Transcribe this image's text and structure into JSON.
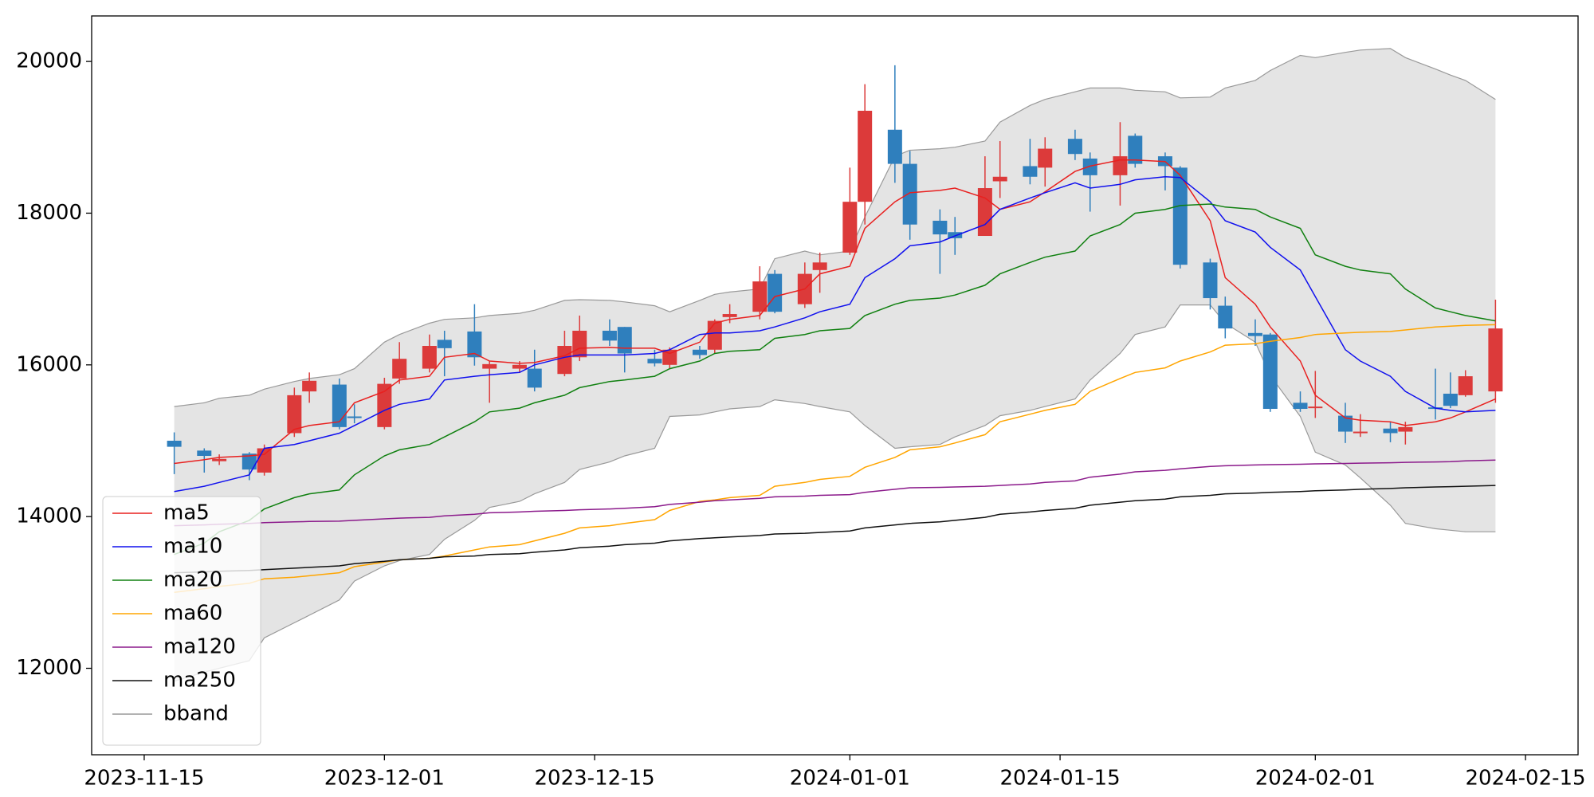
{
  "chart_data": {
    "type": "candlestick",
    "x": [
      "2023-11-17",
      "2023-11-19",
      "2023-11-20",
      "2023-11-22",
      "2023-11-23",
      "2023-11-25",
      "2023-11-26",
      "2023-11-28",
      "2023-11-29",
      "2023-12-01",
      "2023-12-02",
      "2023-12-04",
      "2023-12-05",
      "2023-12-07",
      "2023-12-08",
      "2023-12-10",
      "2023-12-11",
      "2023-12-13",
      "2023-12-14",
      "2023-12-16",
      "2023-12-17",
      "2023-12-19",
      "2023-12-20",
      "2023-12-22",
      "2023-12-23",
      "2023-12-24",
      "2023-12-26",
      "2023-12-27",
      "2023-12-29",
      "2023-12-30",
      "2024-01-01",
      "2024-01-02",
      "2024-01-04",
      "2024-01-05",
      "2024-01-07",
      "2024-01-08",
      "2024-01-10",
      "2024-01-11",
      "2024-01-13",
      "2024-01-14",
      "2024-01-16",
      "2024-01-17",
      "2024-01-19",
      "2024-01-20",
      "2024-01-22",
      "2024-01-23",
      "2024-01-25",
      "2024-01-26",
      "2024-01-28",
      "2024-01-29",
      "2024-01-31",
      "2024-02-01",
      "2024-02-03",
      "2024-02-04",
      "2024-02-06",
      "2024-02-07",
      "2024-02-09",
      "2024-02-10",
      "2024-02-11",
      "2024-02-13"
    ],
    "open": [
      15000,
      14870,
      14730,
      14830,
      14580,
      15100,
      15650,
      15740,
      15320,
      15180,
      15820,
      15950,
      16330,
      16440,
      15950,
      15950,
      15950,
      15880,
      16100,
      16450,
      16500,
      16080,
      16000,
      16200,
      16200,
      16630,
      16700,
      17200,
      16800,
      17250,
      17480,
      18150,
      19100,
      18650,
      17900,
      17750,
      17700,
      18420,
      18620,
      18600,
      18980,
      18720,
      18500,
      19020,
      18750,
      18600,
      17350,
      16780,
      16420,
      16400,
      15500,
      15430,
      15330,
      15110,
      15160,
      15120,
      15440,
      15620,
      15600,
      15650
    ],
    "high": [
      15110,
      14900,
      14820,
      14850,
      14950,
      15700,
      15900,
      15820,
      15480,
      15830,
      16300,
      16400,
      16450,
      16800,
      16050,
      16050,
      16200,
      16450,
      16650,
      16600,
      16500,
      16200,
      16230,
      16250,
      16600,
      16800,
      17300,
      17250,
      17350,
      17480,
      18600,
      19700,
      19950,
      18820,
      18050,
      17950,
      18750,
      18950,
      18980,
      19000,
      19100,
      18800,
      19200,
      19050,
      18800,
      18620,
      17400,
      16900,
      16600,
      16420,
      15650,
      15920,
      15500,
      15350,
      15250,
      15250,
      15950,
      15900,
      15930,
      16860
    ],
    "low": [
      14560,
      14580,
      14680,
      14480,
      14540,
      15050,
      15500,
      15150,
      15230,
      15150,
      15750,
      15900,
      15850,
      15990,
      15500,
      15900,
      15650,
      15850,
      16050,
      16250,
      15900,
      15980,
      15950,
      16080,
      16150,
      16550,
      16600,
      16680,
      16750,
      16950,
      17450,
      17850,
      18400,
      17650,
      17200,
      17450,
      17700,
      18200,
      18380,
      18350,
      18700,
      18020,
      18100,
      18600,
      18300,
      17270,
      16730,
      16350,
      16250,
      15380,
      15380,
      15300,
      14970,
      15050,
      14980,
      14950,
      15280,
      15430,
      15580,
      15500
    ],
    "close": [
      14920,
      14800,
      14760,
      14620,
      14900,
      15600,
      15790,
      15180,
      15300,
      15750,
      16080,
      16250,
      16220,
      16100,
      16010,
      16000,
      15700,
      16250,
      16450,
      16320,
      16150,
      16020,
      16200,
      16130,
      16580,
      16670,
      17100,
      16700,
      17200,
      17350,
      18150,
      19350,
      18650,
      17850,
      17720,
      17670,
      18330,
      18480,
      18480,
      18850,
      18780,
      18500,
      18750,
      18650,
      18620,
      17320,
      16880,
      16480,
      16380,
      15420,
      15420,
      15450,
      15120,
      15120,
      15100,
      15180,
      15420,
      15460,
      15850,
      16480
    ],
    "up_color": "#dc3a3a",
    "down_color": "#2f7fbd",
    "bband": {
      "name": "bband",
      "color": "#999999",
      "fill": "#e4e4e4",
      "upper": [
        15450,
        15500,
        15560,
        15600,
        15680,
        15780,
        15820,
        15870,
        15950,
        16300,
        16400,
        16550,
        16600,
        16620,
        16650,
        16680,
        16720,
        16850,
        16860,
        16850,
        16830,
        16780,
        16700,
        16850,
        16930,
        16960,
        17000,
        17400,
        17500,
        17450,
        17500,
        17950,
        18750,
        18830,
        18850,
        18870,
        18950,
        19200,
        19420,
        19500,
        19600,
        19650,
        19650,
        19620,
        19600,
        19520,
        19530,
        19650,
        19750,
        19880,
        20080,
        20050,
        20120,
        20150,
        20170,
        20050,
        19900,
        19820,
        19750,
        19500
      ],
      "lower": [
        11830,
        11950,
        12000,
        12100,
        12400,
        12600,
        12700,
        12900,
        13150,
        13350,
        13420,
        13500,
        13700,
        13950,
        14120,
        14200,
        14300,
        14450,
        14620,
        14720,
        14800,
        14900,
        15320,
        15340,
        15380,
        15420,
        15450,
        15540,
        15490,
        15450,
        15380,
        15200,
        14900,
        14920,
        14950,
        15050,
        15200,
        15330,
        15400,
        15450,
        15550,
        15800,
        16150,
        16400,
        16500,
        16790,
        16790,
        16550,
        16300,
        15860,
        15320,
        14850,
        14680,
        14510,
        14150,
        13910,
        13840,
        13820,
        13800,
        13800
      ]
    },
    "lines": [
      {
        "name": "ma5",
        "color": "#e8201f",
        "values": [
          14700,
          14750,
          14780,
          14800,
          14820,
          15150,
          15200,
          15250,
          15500,
          15650,
          15800,
          15850,
          16100,
          16150,
          16050,
          16020,
          16030,
          16120,
          16220,
          16230,
          16220,
          16220,
          16150,
          16300,
          16550,
          16600,
          16650,
          16900,
          17000,
          17200,
          17300,
          17800,
          18150,
          18270,
          18300,
          18330,
          18200,
          18050,
          18150,
          18280,
          18550,
          18620,
          18700,
          18700,
          18680,
          18500,
          17900,
          17150,
          16800,
          16500,
          16050,
          15600,
          15300,
          15270,
          15250,
          15200,
          15250,
          15300,
          15380,
          15550
        ]
      },
      {
        "name": "ma10",
        "color": "#1010ee",
        "values": [
          14330,
          14400,
          14450,
          14550,
          14900,
          14950,
          15000,
          15100,
          15200,
          15400,
          15480,
          15550,
          15800,
          15850,
          15870,
          15900,
          16000,
          16100,
          16130,
          16130,
          16130,
          16150,
          16200,
          16400,
          16420,
          16420,
          16450,
          16500,
          16620,
          16700,
          16800,
          17150,
          17400,
          17570,
          17620,
          17700,
          17850,
          18050,
          18200,
          18270,
          18400,
          18330,
          18380,
          18440,
          18480,
          18470,
          18150,
          17900,
          17750,
          17550,
          17250,
          16900,
          16200,
          16050,
          15850,
          15650,
          15430,
          15400,
          15380,
          15400
        ]
      },
      {
        "name": "ma20",
        "color": "#108010",
        "values": [
          13500,
          13650,
          13800,
          13950,
          14100,
          14250,
          14300,
          14350,
          14550,
          14800,
          14880,
          14950,
          15050,
          15250,
          15380,
          15430,
          15500,
          15600,
          15700,
          15780,
          15800,
          15850,
          15950,
          16050,
          16150,
          16180,
          16200,
          16350,
          16400,
          16450,
          16480,
          16650,
          16800,
          16850,
          16880,
          16920,
          17050,
          17200,
          17350,
          17420,
          17500,
          17700,
          17850,
          18000,
          18050,
          18100,
          18120,
          18080,
          18050,
          17950,
          17800,
          17450,
          17300,
          17250,
          17200,
          17000,
          16750,
          16700,
          16650,
          16580
        ]
      },
      {
        "name": "ma60",
        "color": "#ffa500",
        "values": [
          13000,
          13050,
          13080,
          13120,
          13180,
          13200,
          13220,
          13260,
          13340,
          13400,
          13430,
          13450,
          13480,
          13560,
          13600,
          13630,
          13680,
          13780,
          13850,
          13880,
          13910,
          13960,
          14080,
          14200,
          14220,
          14250,
          14280,
          14400,
          14450,
          14490,
          14530,
          14650,
          14780,
          14880,
          14920,
          14970,
          15080,
          15250,
          15350,
          15400,
          15480,
          15650,
          15820,
          15900,
          15960,
          16050,
          16170,
          16260,
          16280,
          16310,
          16360,
          16400,
          16420,
          16430,
          16440,
          16460,
          16500,
          16510,
          16520,
          16530
        ]
      },
      {
        "name": "ma120",
        "color": "#8b1a8b",
        "values": [
          13880,
          13890,
          13900,
          13910,
          13920,
          13930,
          13935,
          13940,
          13950,
          13970,
          13980,
          13990,
          14010,
          14030,
          14050,
          14060,
          14070,
          14080,
          14090,
          14100,
          14110,
          14130,
          14160,
          14190,
          14210,
          14220,
          14240,
          14260,
          14270,
          14280,
          14290,
          14320,
          14360,
          14380,
          14385,
          14390,
          14400,
          14410,
          14430,
          14450,
          14470,
          14520,
          14560,
          14590,
          14610,
          14630,
          14660,
          14670,
          14680,
          14685,
          14690,
          14695,
          14700,
          14705,
          14710,
          14715,
          14720,
          14725,
          14735,
          14745
        ]
      },
      {
        "name": "ma250",
        "color": "#111111",
        "values": [
          13260,
          13270,
          13280,
          13290,
          13300,
          13320,
          13330,
          13350,
          13380,
          13410,
          13430,
          13450,
          13470,
          13480,
          13500,
          13510,
          13530,
          13560,
          13590,
          13610,
          13630,
          13650,
          13680,
          13710,
          13720,
          13730,
          13750,
          13770,
          13780,
          13790,
          13810,
          13850,
          13890,
          13910,
          13930,
          13950,
          13990,
          14030,
          14060,
          14080,
          14110,
          14150,
          14190,
          14210,
          14230,
          14260,
          14280,
          14300,
          14310,
          14320,
          14330,
          14340,
          14350,
          14360,
          14370,
          14380,
          14390,
          14395,
          14400,
          14410
        ]
      }
    ],
    "xlim": [
      "2023-11-11T12:00",
      "2024-02-18T12:00"
    ],
    "xticks": [
      "2023-11-15",
      "2023-12-01",
      "2023-12-15",
      "2024-01-01",
      "2024-01-15",
      "2024-02-01",
      "2024-02-15"
    ],
    "ylim": [
      10860,
      20600
    ],
    "yticks": [
      12000,
      14000,
      16000,
      18000,
      20000
    ],
    "legend": "lower left"
  }
}
